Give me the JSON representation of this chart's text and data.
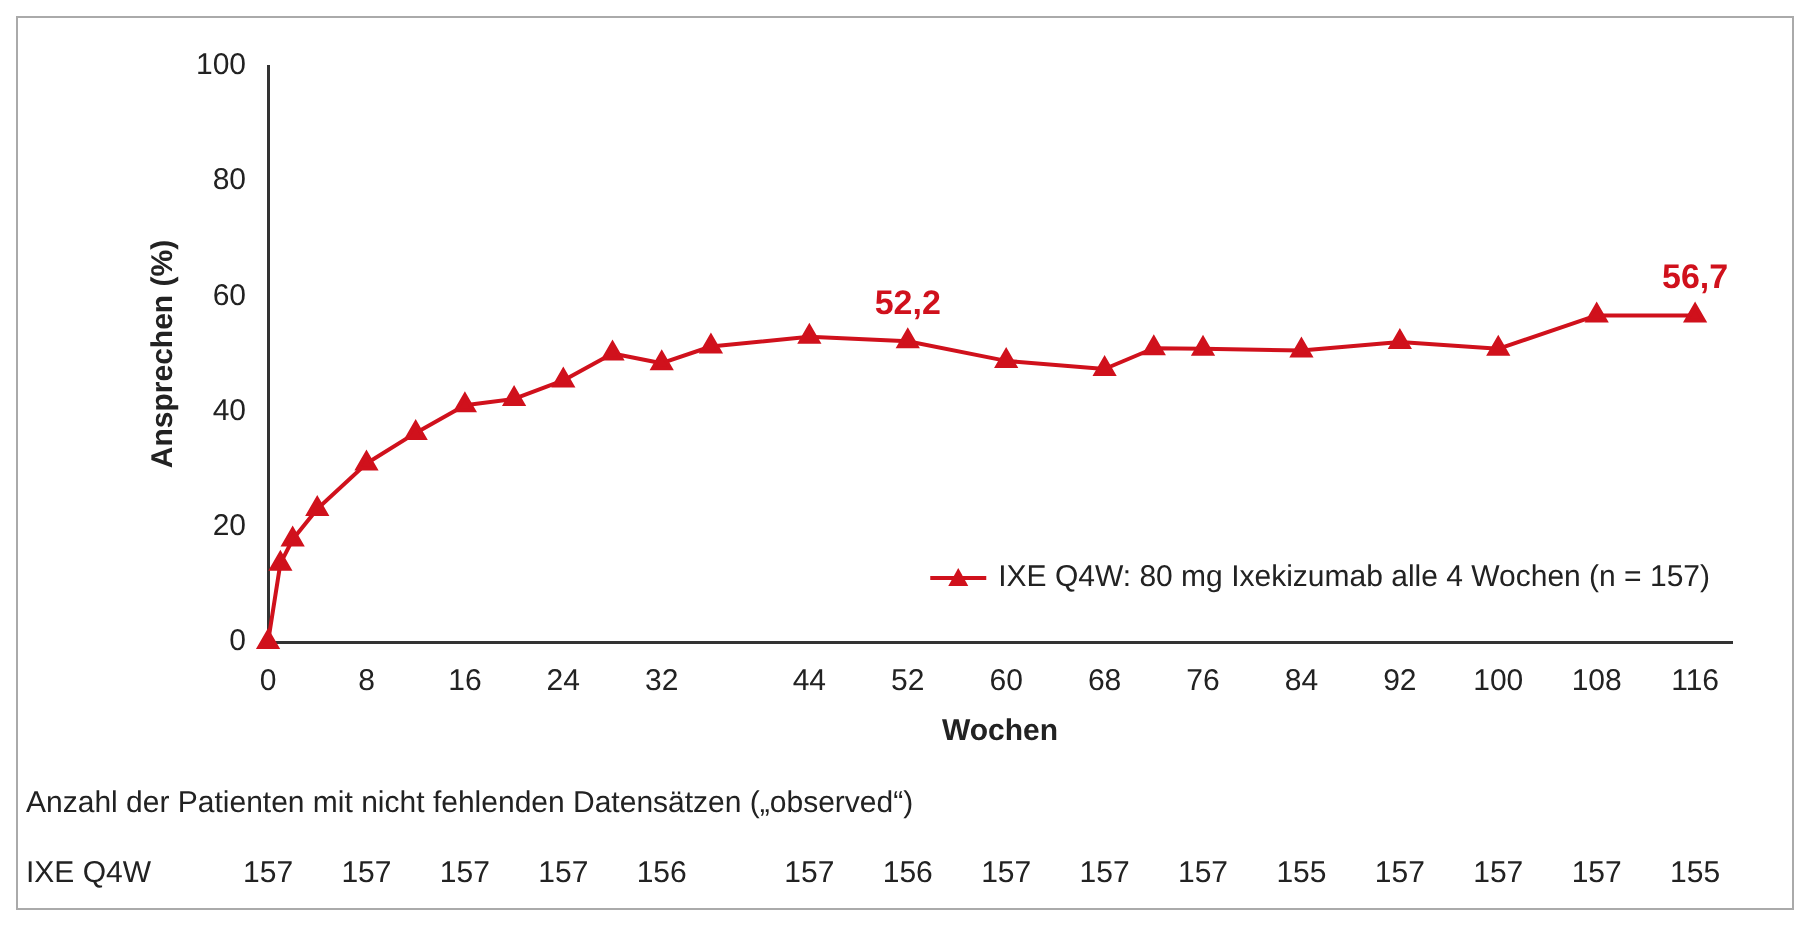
{
  "chart_data": {
    "type": "line",
    "xlabel": "Wochen",
    "ylabel": "Ansprechen (%)",
    "x": [
      0,
      1,
      2,
      4,
      8,
      12,
      16,
      20,
      24,
      28,
      32,
      36,
      44,
      52,
      60,
      68,
      72,
      76,
      84,
      92,
      100,
      108,
      116
    ],
    "series": [
      {
        "name": "IXE Q4W: 80 mg Ixekizumab alle 4 Wochen (n = 157)",
        "color": "#d0111c",
        "values": [
          0,
          13.6,
          17.8,
          23.1,
          31.0,
          36.3,
          41.1,
          42.2,
          45.4,
          50.1,
          48.4,
          51.3,
          53.0,
          52.2,
          48.8,
          47.4,
          51.0,
          50.9,
          50.6,
          52.1,
          50.9,
          56.7,
          56.7
        ],
        "value_labels": [
          null,
          null,
          null,
          null,
          null,
          null,
          null,
          null,
          null,
          null,
          null,
          null,
          null,
          "52,2",
          null,
          null,
          null,
          null,
          null,
          null,
          null,
          null,
          "56,7"
        ]
      }
    ],
    "xlim": [
      0,
      119
    ],
    "xticks": [
      0,
      8,
      16,
      24,
      32,
      44,
      52,
      60,
      68,
      76,
      84,
      92,
      100,
      108,
      116
    ],
    "ylim": [
      0,
      100
    ],
    "yticks": [
      0,
      20,
      40,
      60,
      80,
      100
    ],
    "grid": false,
    "legend": "bottom right",
    "marker": "triangle",
    "line_style": "solid",
    "annotations": [
      "Anzahl der Patienten mit nicht fehlenden Datensätzen („observed“)",
      "IXE Q4W",
      "157",
      "157",
      "157",
      "157",
      "156",
      "157",
      "156",
      "157",
      "157",
      "157",
      "155",
      "157",
      "157",
      "157",
      "155"
    ]
  }
}
